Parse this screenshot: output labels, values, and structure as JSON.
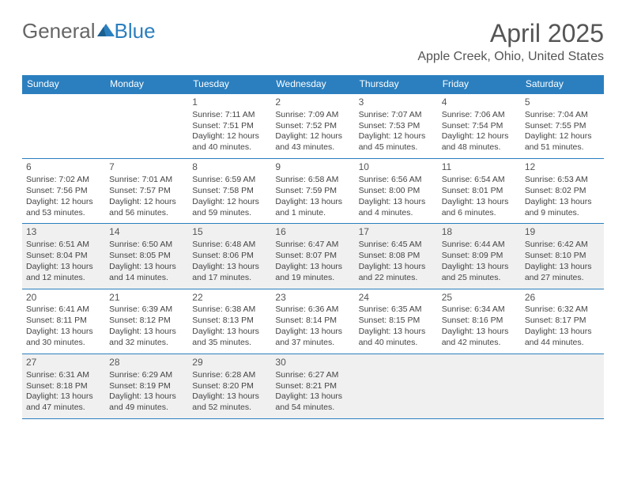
{
  "brand": {
    "part1": "General",
    "part2": "Blue"
  },
  "title": {
    "month": "April 2025",
    "location": "Apple Creek, Ohio, United States"
  },
  "colors": {
    "accent": "#2b7fbf",
    "shade": "#f0f0f0",
    "text": "#444"
  },
  "weekdays": [
    "Sunday",
    "Monday",
    "Tuesday",
    "Wednesday",
    "Thursday",
    "Friday",
    "Saturday"
  ],
  "weeks": [
    {
      "shade": false,
      "days": [
        {
          "n": "",
          "sr": "",
          "ss": "",
          "d1": "",
          "d2": ""
        },
        {
          "n": "",
          "sr": "",
          "ss": "",
          "d1": "",
          "d2": ""
        },
        {
          "n": "1",
          "sr": "Sunrise: 7:11 AM",
          "ss": "Sunset: 7:51 PM",
          "d1": "Daylight: 12 hours",
          "d2": "and 40 minutes."
        },
        {
          "n": "2",
          "sr": "Sunrise: 7:09 AM",
          "ss": "Sunset: 7:52 PM",
          "d1": "Daylight: 12 hours",
          "d2": "and 43 minutes."
        },
        {
          "n": "3",
          "sr": "Sunrise: 7:07 AM",
          "ss": "Sunset: 7:53 PM",
          "d1": "Daylight: 12 hours",
          "d2": "and 45 minutes."
        },
        {
          "n": "4",
          "sr": "Sunrise: 7:06 AM",
          "ss": "Sunset: 7:54 PM",
          "d1": "Daylight: 12 hours",
          "d2": "and 48 minutes."
        },
        {
          "n": "5",
          "sr": "Sunrise: 7:04 AM",
          "ss": "Sunset: 7:55 PM",
          "d1": "Daylight: 12 hours",
          "d2": "and 51 minutes."
        }
      ]
    },
    {
      "shade": false,
      "days": [
        {
          "n": "6",
          "sr": "Sunrise: 7:02 AM",
          "ss": "Sunset: 7:56 PM",
          "d1": "Daylight: 12 hours",
          "d2": "and 53 minutes."
        },
        {
          "n": "7",
          "sr": "Sunrise: 7:01 AM",
          "ss": "Sunset: 7:57 PM",
          "d1": "Daylight: 12 hours",
          "d2": "and 56 minutes."
        },
        {
          "n": "8",
          "sr": "Sunrise: 6:59 AM",
          "ss": "Sunset: 7:58 PM",
          "d1": "Daylight: 12 hours",
          "d2": "and 59 minutes."
        },
        {
          "n": "9",
          "sr": "Sunrise: 6:58 AM",
          "ss": "Sunset: 7:59 PM",
          "d1": "Daylight: 13 hours",
          "d2": "and 1 minute."
        },
        {
          "n": "10",
          "sr": "Sunrise: 6:56 AM",
          "ss": "Sunset: 8:00 PM",
          "d1": "Daylight: 13 hours",
          "d2": "and 4 minutes."
        },
        {
          "n": "11",
          "sr": "Sunrise: 6:54 AM",
          "ss": "Sunset: 8:01 PM",
          "d1": "Daylight: 13 hours",
          "d2": "and 6 minutes."
        },
        {
          "n": "12",
          "sr": "Sunrise: 6:53 AM",
          "ss": "Sunset: 8:02 PM",
          "d1": "Daylight: 13 hours",
          "d2": "and 9 minutes."
        }
      ]
    },
    {
      "shade": true,
      "days": [
        {
          "n": "13",
          "sr": "Sunrise: 6:51 AM",
          "ss": "Sunset: 8:04 PM",
          "d1": "Daylight: 13 hours",
          "d2": "and 12 minutes."
        },
        {
          "n": "14",
          "sr": "Sunrise: 6:50 AM",
          "ss": "Sunset: 8:05 PM",
          "d1": "Daylight: 13 hours",
          "d2": "and 14 minutes."
        },
        {
          "n": "15",
          "sr": "Sunrise: 6:48 AM",
          "ss": "Sunset: 8:06 PM",
          "d1": "Daylight: 13 hours",
          "d2": "and 17 minutes."
        },
        {
          "n": "16",
          "sr": "Sunrise: 6:47 AM",
          "ss": "Sunset: 8:07 PM",
          "d1": "Daylight: 13 hours",
          "d2": "and 19 minutes."
        },
        {
          "n": "17",
          "sr": "Sunrise: 6:45 AM",
          "ss": "Sunset: 8:08 PM",
          "d1": "Daylight: 13 hours",
          "d2": "and 22 minutes."
        },
        {
          "n": "18",
          "sr": "Sunrise: 6:44 AM",
          "ss": "Sunset: 8:09 PM",
          "d1": "Daylight: 13 hours",
          "d2": "and 25 minutes."
        },
        {
          "n": "19",
          "sr": "Sunrise: 6:42 AM",
          "ss": "Sunset: 8:10 PM",
          "d1": "Daylight: 13 hours",
          "d2": "and 27 minutes."
        }
      ]
    },
    {
      "shade": false,
      "days": [
        {
          "n": "20",
          "sr": "Sunrise: 6:41 AM",
          "ss": "Sunset: 8:11 PM",
          "d1": "Daylight: 13 hours",
          "d2": "and 30 minutes."
        },
        {
          "n": "21",
          "sr": "Sunrise: 6:39 AM",
          "ss": "Sunset: 8:12 PM",
          "d1": "Daylight: 13 hours",
          "d2": "and 32 minutes."
        },
        {
          "n": "22",
          "sr": "Sunrise: 6:38 AM",
          "ss": "Sunset: 8:13 PM",
          "d1": "Daylight: 13 hours",
          "d2": "and 35 minutes."
        },
        {
          "n": "23",
          "sr": "Sunrise: 6:36 AM",
          "ss": "Sunset: 8:14 PM",
          "d1": "Daylight: 13 hours",
          "d2": "and 37 minutes."
        },
        {
          "n": "24",
          "sr": "Sunrise: 6:35 AM",
          "ss": "Sunset: 8:15 PM",
          "d1": "Daylight: 13 hours",
          "d2": "and 40 minutes."
        },
        {
          "n": "25",
          "sr": "Sunrise: 6:34 AM",
          "ss": "Sunset: 8:16 PM",
          "d1": "Daylight: 13 hours",
          "d2": "and 42 minutes."
        },
        {
          "n": "26",
          "sr": "Sunrise: 6:32 AM",
          "ss": "Sunset: 8:17 PM",
          "d1": "Daylight: 13 hours",
          "d2": "and 44 minutes."
        }
      ]
    },
    {
      "shade": true,
      "days": [
        {
          "n": "27",
          "sr": "Sunrise: 6:31 AM",
          "ss": "Sunset: 8:18 PM",
          "d1": "Daylight: 13 hours",
          "d2": "and 47 minutes."
        },
        {
          "n": "28",
          "sr": "Sunrise: 6:29 AM",
          "ss": "Sunset: 8:19 PM",
          "d1": "Daylight: 13 hours",
          "d2": "and 49 minutes."
        },
        {
          "n": "29",
          "sr": "Sunrise: 6:28 AM",
          "ss": "Sunset: 8:20 PM",
          "d1": "Daylight: 13 hours",
          "d2": "and 52 minutes."
        },
        {
          "n": "30",
          "sr": "Sunrise: 6:27 AM",
          "ss": "Sunset: 8:21 PM",
          "d1": "Daylight: 13 hours",
          "d2": "and 54 minutes."
        },
        {
          "n": "",
          "sr": "",
          "ss": "",
          "d1": "",
          "d2": ""
        },
        {
          "n": "",
          "sr": "",
          "ss": "",
          "d1": "",
          "d2": ""
        },
        {
          "n": "",
          "sr": "",
          "ss": "",
          "d1": "",
          "d2": ""
        }
      ]
    }
  ]
}
